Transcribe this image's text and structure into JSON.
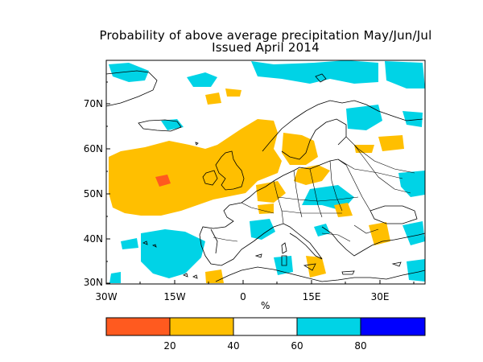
{
  "title": "Probability of above average precipitation May/Jun/Jul",
  "subtitle": "Issued April 2014",
  "map": {
    "lat_labels": [
      "70N",
      "60N",
      "50N",
      "40N",
      "30N"
    ],
    "lon_labels": [
      "30W",
      "15W",
      "0",
      "15E",
      "30E"
    ],
    "unit": "%"
  },
  "colorbar": {
    "colors": [
      "#ff5a1f",
      "#ffbf00",
      "#ffffff",
      "#00d3e6",
      "#0000ff"
    ],
    "tick_labels": [
      "20",
      "40",
      "60",
      "80"
    ]
  }
}
